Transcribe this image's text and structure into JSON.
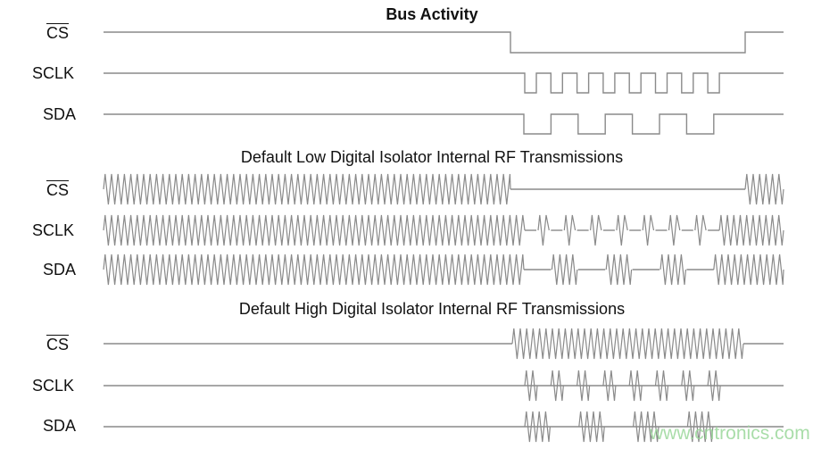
{
  "titles": {
    "bus": "Bus Activity",
    "low": "Default Low Digital Isolator Internal RF Transmissions",
    "high": "Default High Digital Isolator Internal RF Transmissions"
  },
  "signals": {
    "cs": "CS",
    "sclk": "SCLK",
    "sda": "SDA"
  },
  "waveform": {
    "sclk_clock_cycles": 8,
    "sda_low_bits": 4,
    "cs_active": "low"
  },
  "watermark": "www.cntronics.com",
  "colors": {
    "trace": "#8a8a8a",
    "watermark": "#9bd89b"
  }
}
